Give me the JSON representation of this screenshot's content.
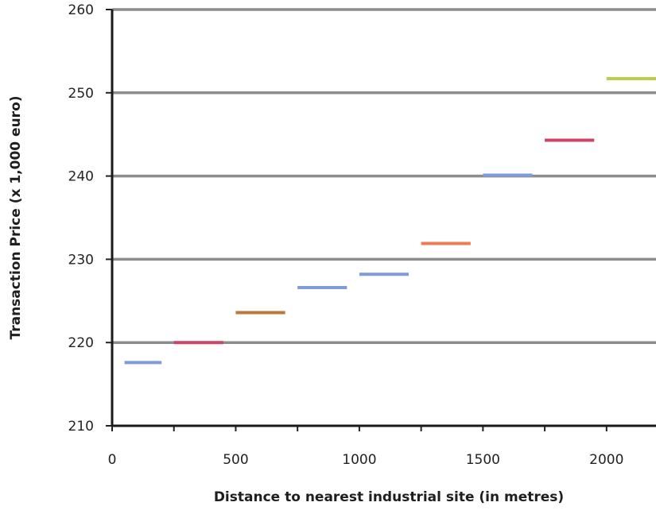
{
  "chart_data": {
    "type": "line",
    "title": "",
    "xlabel": "Distance to nearest industrial site (in metres)",
    "ylabel": "Transaction Price (x 1,000 euro)",
    "xlim": [
      0,
      2200
    ],
    "ylim": [
      210,
      260
    ],
    "x_ticks": [
      "0",
      "500",
      "1000",
      "1500",
      "2000"
    ],
    "y_ticks": [
      "210",
      "220",
      "230",
      "240",
      "250",
      "260"
    ],
    "grid": "horizontal",
    "legend": "none",
    "series": [
      {
        "x_start": 50,
        "x_end": 200,
        "value": 217.6,
        "color": "#7f9bd8"
      },
      {
        "x_start": 250,
        "x_end": 450,
        "value": 220.0,
        "color": "#cc4466"
      },
      {
        "x_start": 500,
        "x_end": 700,
        "value": 223.6,
        "color": "#b87a3a"
      },
      {
        "x_start": 750,
        "x_end": 950,
        "value": 226.6,
        "color": "#7f9bd8"
      },
      {
        "x_start": 1000,
        "x_end": 1200,
        "value": 228.2,
        "color": "#7f9bd8"
      },
      {
        "x_start": 1250,
        "x_end": 1450,
        "value": 231.9,
        "color": "#ee7b52"
      },
      {
        "x_start": 1500,
        "x_end": 1700,
        "value": 240.1,
        "color": "#7f9bd8"
      },
      {
        "x_start": 1750,
        "x_end": 1950,
        "value": 244.3,
        "color": "#cc4466"
      },
      {
        "x_start": 2000,
        "x_end": 2200,
        "value": 251.7,
        "color": "#b8cf4a"
      }
    ]
  }
}
